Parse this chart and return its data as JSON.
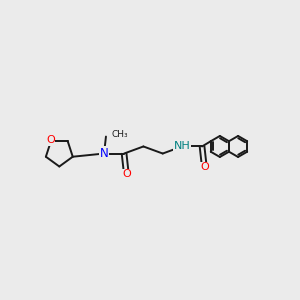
{
  "bg_color": "#ebebeb",
  "bond_color": "#1a1a1a",
  "N_color": "#0000ff",
  "O_color": "#ff0000",
  "NH_color": "#008080",
  "lw": 1.4,
  "fs": 7.5,
  "figsize": [
    3.0,
    3.0
  ],
  "dpi": 100,
  "xlim": [
    -1.0,
    11.5
  ],
  "ylim": [
    2.5,
    8.5
  ]
}
